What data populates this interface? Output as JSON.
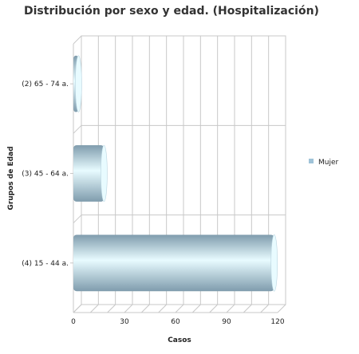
{
  "chart_data": {
    "type": "bar",
    "orientation": "horizontal",
    "title": "Distribución por sexo y edad. (Hospitalización)",
    "xlabel": "Casos",
    "ylabel": "Grupos de Edad",
    "categories": [
      "(2) 65 - 74 a.",
      "(3) 45 - 64 a.",
      "(4) 15 - 44 a."
    ],
    "series": [
      {
        "name": "Mujer",
        "values": [
          3,
          18,
          118
        ]
      }
    ],
    "xlim": [
      0,
      120
    ],
    "xticks": [
      "0",
      "30",
      "60",
      "90",
      "120"
    ],
    "grid": true,
    "legend_position": "right",
    "colors": {
      "bar_dark": "#7f9cad",
      "bar_light": "#e8fbff",
      "legend": "#9fc3d8"
    }
  }
}
